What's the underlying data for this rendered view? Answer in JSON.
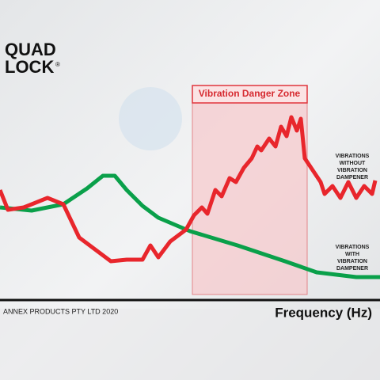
{
  "logo": {
    "line1": "QUAD",
    "line2": "LOCK",
    "mark": "®"
  },
  "zone_label": "Vibration Danger Zone",
  "labels": {
    "without": [
      "VIBRATIONS",
      "WITHOUT",
      "VIBRATION",
      "DAMPENER"
    ],
    "with": [
      "VIBRATIONS",
      "WITH",
      "VIBRATION",
      "DAMPENER"
    ]
  },
  "copyright": "ANNEX PRODUCTS PTY LTD 2020",
  "x_axis_label": "Frequency (Hz)"
}
